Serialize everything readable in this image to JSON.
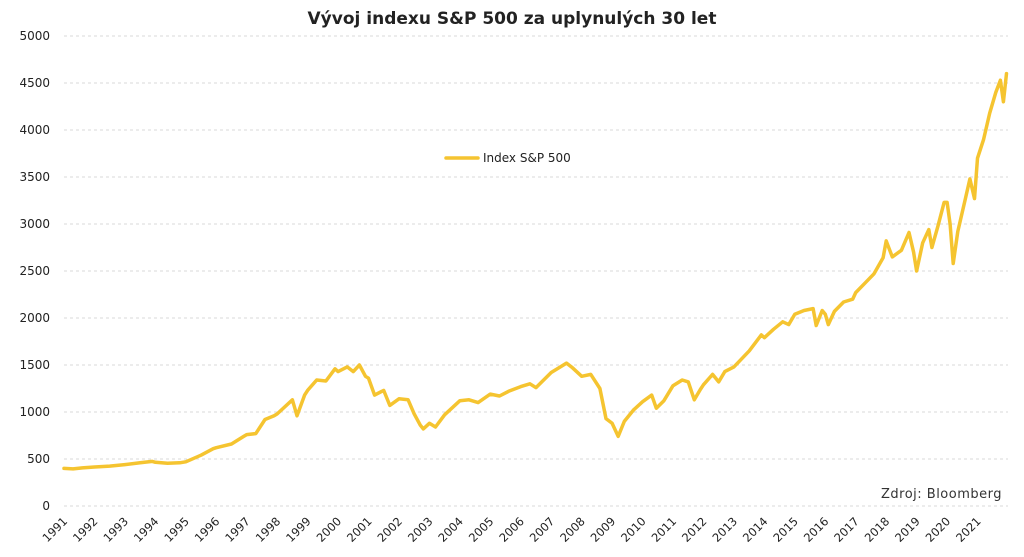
{
  "chart_data": {
    "type": "line",
    "title": "Vývoj indexu S&P 500 za uplynulých 30 let",
    "source": "Zdroj: Bloomberg",
    "ylim": [
      0,
      5000
    ],
    "yticks": [
      "0",
      "500",
      "1000",
      "1500",
      "2000",
      "2500",
      "3000",
      "3500",
      "4000",
      "4500",
      "5000"
    ],
    "xticks": [
      "1991",
      "1992",
      "1993",
      "1994",
      "1995",
      "1996",
      "1997",
      "1998",
      "1999",
      "2000",
      "2001",
      "2002",
      "2003",
      "2004",
      "2005",
      "2006",
      "2007",
      "2008",
      "2009",
      "2010",
      "2011",
      "2012",
      "2013",
      "2014",
      "2015",
      "2016",
      "2017",
      "2018",
      "2019",
      "2020",
      "2021"
    ],
    "grid": true,
    "legend_position": "top-center",
    "series": [
      {
        "name": "Index S&P 500",
        "color": "#F5C430",
        "points": [
          [
            1991.0,
            400
          ],
          [
            1991.3,
            395
          ],
          [
            1991.6,
            405
          ],
          [
            1992.0,
            415
          ],
          [
            1992.5,
            425
          ],
          [
            1993.0,
            440
          ],
          [
            1993.5,
            460
          ],
          [
            1993.9,
            475
          ],
          [
            1994.0,
            465
          ],
          [
            1994.4,
            455
          ],
          [
            1994.8,
            460
          ],
          [
            1995.0,
            470
          ],
          [
            1995.5,
            540
          ],
          [
            1995.9,
            610
          ],
          [
            1996.0,
            620
          ],
          [
            1996.5,
            660
          ],
          [
            1996.9,
            740
          ],
          [
            1997.0,
            760
          ],
          [
            1997.3,
            770
          ],
          [
            1997.6,
            920
          ],
          [
            1997.9,
            960
          ],
          [
            1998.0,
            980
          ],
          [
            1998.5,
            1130
          ],
          [
            1998.65,
            960
          ],
          [
            1998.9,
            1180
          ],
          [
            1999.0,
            1230
          ],
          [
            1999.3,
            1340
          ],
          [
            1999.6,
            1330
          ],
          [
            1999.9,
            1460
          ],
          [
            2000.0,
            1430
          ],
          [
            2000.3,
            1480
          ],
          [
            2000.5,
            1430
          ],
          [
            2000.7,
            1500
          ],
          [
            2000.9,
            1380
          ],
          [
            2001.0,
            1360
          ],
          [
            2001.2,
            1180
          ],
          [
            2001.5,
            1230
          ],
          [
            2001.7,
            1070
          ],
          [
            2002.0,
            1140
          ],
          [
            2002.3,
            1130
          ],
          [
            2002.5,
            980
          ],
          [
            2002.7,
            860
          ],
          [
            2002.8,
            820
          ],
          [
            2003.0,
            880
          ],
          [
            2003.2,
            840
          ],
          [
            2003.5,
            970
          ],
          [
            2004.0,
            1120
          ],
          [
            2004.3,
            1130
          ],
          [
            2004.6,
            1100
          ],
          [
            2005.0,
            1190
          ],
          [
            2005.3,
            1170
          ],
          [
            2005.6,
            1220
          ],
          [
            2006.0,
            1270
          ],
          [
            2006.3,
            1300
          ],
          [
            2006.5,
            1260
          ],
          [
            2007.0,
            1420
          ],
          [
            2007.3,
            1480
          ],
          [
            2007.5,
            1520
          ],
          [
            2007.7,
            1470
          ],
          [
            2008.0,
            1380
          ],
          [
            2008.3,
            1400
          ],
          [
            2008.6,
            1250
          ],
          [
            2008.8,
            930
          ],
          [
            2009.0,
            880
          ],
          [
            2009.2,
            740
          ],
          [
            2009.4,
            900
          ],
          [
            2009.7,
            1020
          ],
          [
            2010.0,
            1110
          ],
          [
            2010.3,
            1180
          ],
          [
            2010.45,
            1040
          ],
          [
            2010.7,
            1120
          ],
          [
            2011.0,
            1280
          ],
          [
            2011.3,
            1340
          ],
          [
            2011.5,
            1320
          ],
          [
            2011.7,
            1130
          ],
          [
            2011.9,
            1240
          ],
          [
            2012.0,
            1290
          ],
          [
            2012.3,
            1400
          ],
          [
            2012.5,
            1320
          ],
          [
            2012.7,
            1430
          ],
          [
            2013.0,
            1480
          ],
          [
            2013.5,
            1650
          ],
          [
            2013.9,
            1820
          ],
          [
            2014.0,
            1790
          ],
          [
            2014.3,
            1880
          ],
          [
            2014.6,
            1960
          ],
          [
            2014.8,
            1930
          ],
          [
            2015.0,
            2040
          ],
          [
            2015.3,
            2080
          ],
          [
            2015.6,
            2100
          ],
          [
            2015.7,
            1920
          ],
          [
            2015.9,
            2080
          ],
          [
            2016.0,
            2040
          ],
          [
            2016.1,
            1930
          ],
          [
            2016.3,
            2070
          ],
          [
            2016.6,
            2170
          ],
          [
            2016.9,
            2200
          ],
          [
            2017.0,
            2270
          ],
          [
            2017.3,
            2370
          ],
          [
            2017.6,
            2470
          ],
          [
            2017.9,
            2640
          ],
          [
            2018.0,
            2820
          ],
          [
            2018.2,
            2650
          ],
          [
            2018.5,
            2720
          ],
          [
            2018.75,
            2910
          ],
          [
            2018.9,
            2700
          ],
          [
            2019.0,
            2500
          ],
          [
            2019.2,
            2800
          ],
          [
            2019.4,
            2940
          ],
          [
            2019.5,
            2750
          ],
          [
            2019.7,
            2980
          ],
          [
            2019.9,
            3230
          ],
          [
            2020.0,
            3230
          ],
          [
            2020.1,
            3000
          ],
          [
            2020.2,
            2580
          ],
          [
            2020.35,
            2920
          ],
          [
            2020.6,
            3270
          ],
          [
            2020.75,
            3480
          ],
          [
            2020.9,
            3270
          ],
          [
            2021.0,
            3700
          ],
          [
            2021.2,
            3900
          ],
          [
            2021.4,
            4180
          ],
          [
            2021.6,
            4400
          ],
          [
            2021.75,
            4530
          ],
          [
            2021.85,
            4300
          ],
          [
            2021.95,
            4600
          ]
        ]
      }
    ]
  }
}
